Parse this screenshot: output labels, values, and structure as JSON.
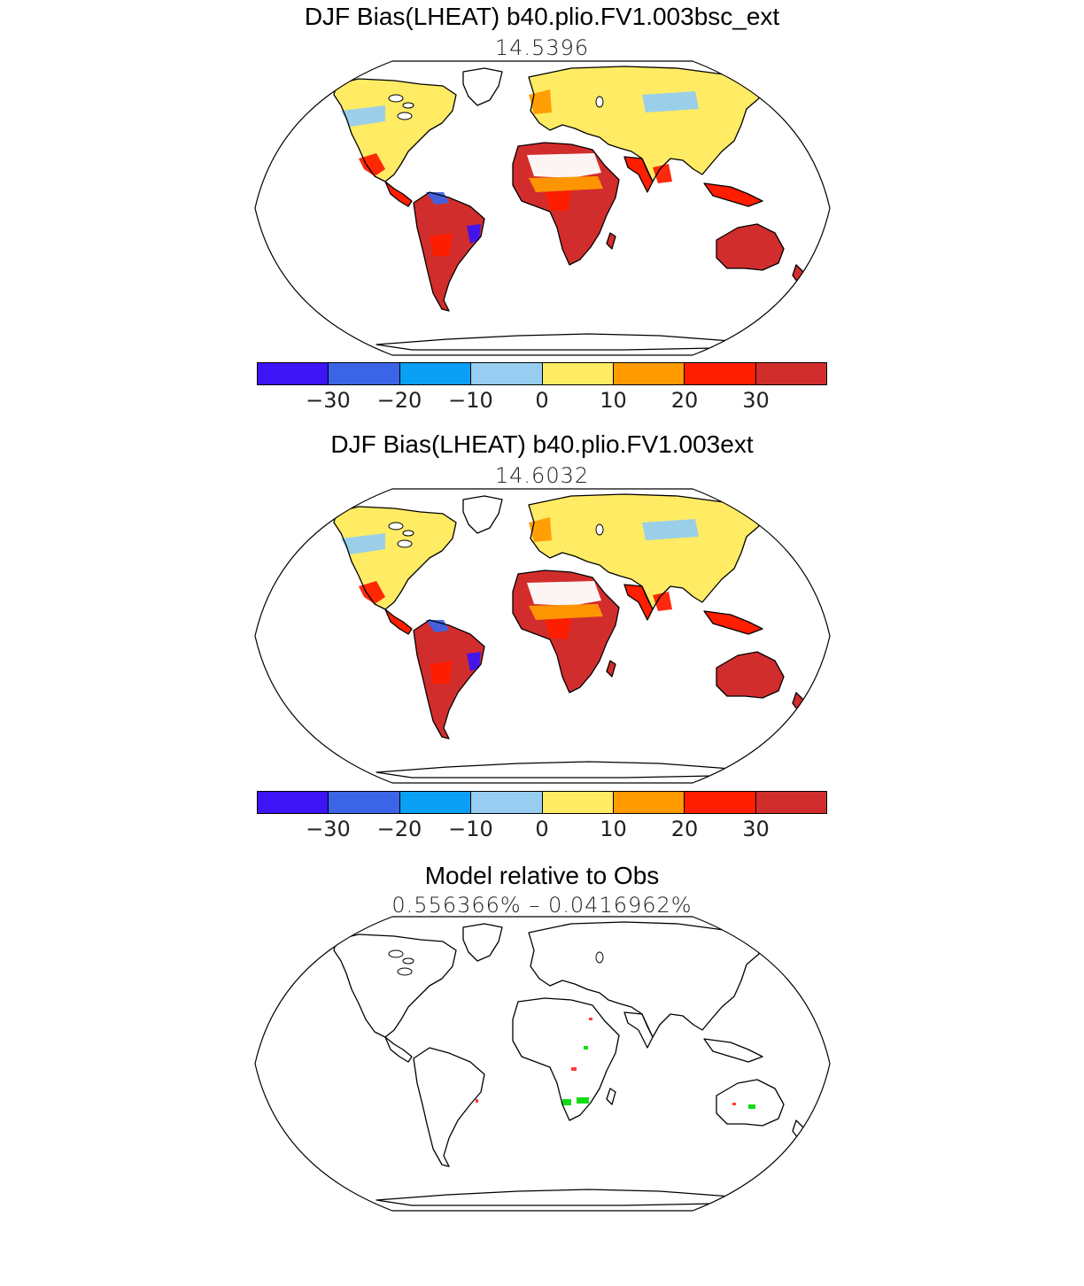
{
  "panels": [
    {
      "title": "DJF Bias(LHEAT) b40.plio.FV1.003bsc_ext",
      "subtitle": "14.5396",
      "kind": "bias"
    },
    {
      "title": "DJF Bias(LHEAT) b40.plio.FV1.003ext",
      "subtitle": "14.6032",
      "kind": "bias"
    },
    {
      "title": "Model relative to Obs",
      "subtitle": "0.556366% – 0.0416962%",
      "kind": "relative"
    }
  ],
  "colorbar": {
    "colors": [
      "#3c14f5",
      "#3c64e6",
      "#0aa0f5",
      "#96cdf0",
      "#ffeb64",
      "#ff9b00",
      "#ff1e00",
      "#d22d2d"
    ],
    "tick_labels": [
      "−30",
      "−20",
      "−10",
      "0",
      "10",
      "20",
      "30"
    ]
  },
  "relative_colors": {
    "green": "#14dc14",
    "red": "#ff3c3c"
  }
}
